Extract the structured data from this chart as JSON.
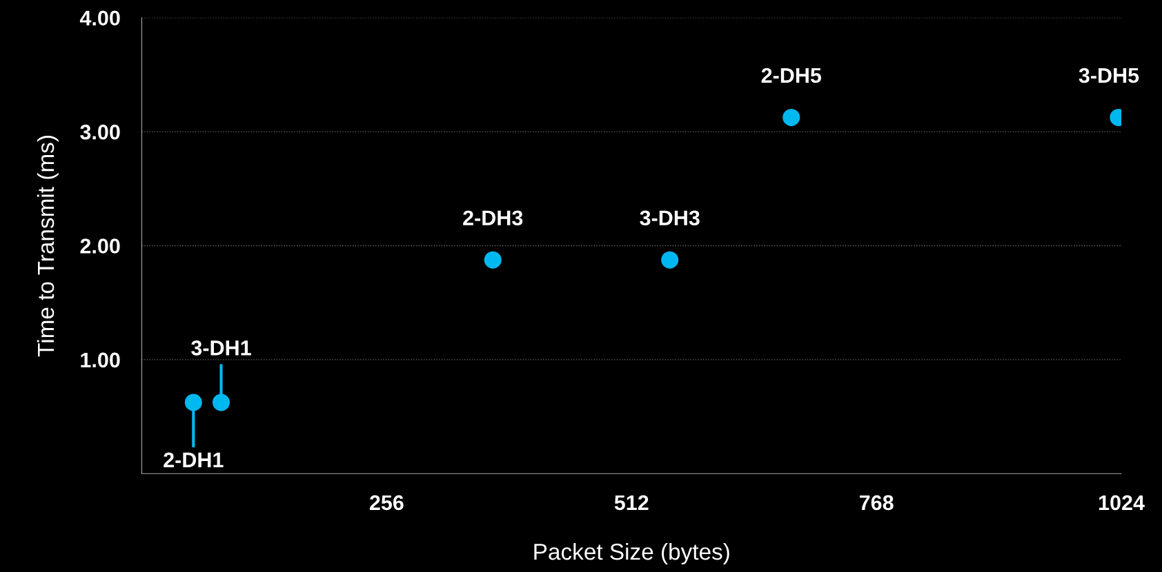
{
  "chart_data": {
    "type": "scatter",
    "xlabel": "Packet Size (bytes)",
    "ylabel": "Time to Transmit (ms)",
    "x": [
      54,
      83,
      367,
      552,
      679,
      1021
    ],
    "series": [
      {
        "color": "#00b8f0",
        "values": [
          0.625,
          0.625,
          1.875,
          1.875,
          3.125,
          3.125
        ]
      }
    ],
    "xlim": [
      0,
      1024
    ],
    "xticks": [
      256,
      512,
      768,
      1024
    ],
    "ylim": [
      0,
      4
    ],
    "yticks": [
      {
        "value": 1,
        "label": "1.00"
      },
      {
        "value": 2,
        "label": "2.00"
      },
      {
        "value": 3,
        "label": "3.00"
      },
      {
        "value": 4,
        "label": "4.00"
      }
    ],
    "grid": "y",
    "marker": "circle",
    "annotations": [
      {
        "text": "2-DH1",
        "x": 54,
        "y": 0.625
      },
      {
        "text": "3-DH1",
        "x": 83,
        "y": 0.625
      },
      {
        "text": "2-DH3",
        "x": 367,
        "y": 1.875
      },
      {
        "text": "3-DH3",
        "x": 552,
        "y": 1.875
      },
      {
        "text": "2-DH5",
        "x": 679,
        "y": 3.125
      },
      {
        "text": "3-DH5",
        "x": 1021,
        "y": 3.125
      }
    ]
  }
}
